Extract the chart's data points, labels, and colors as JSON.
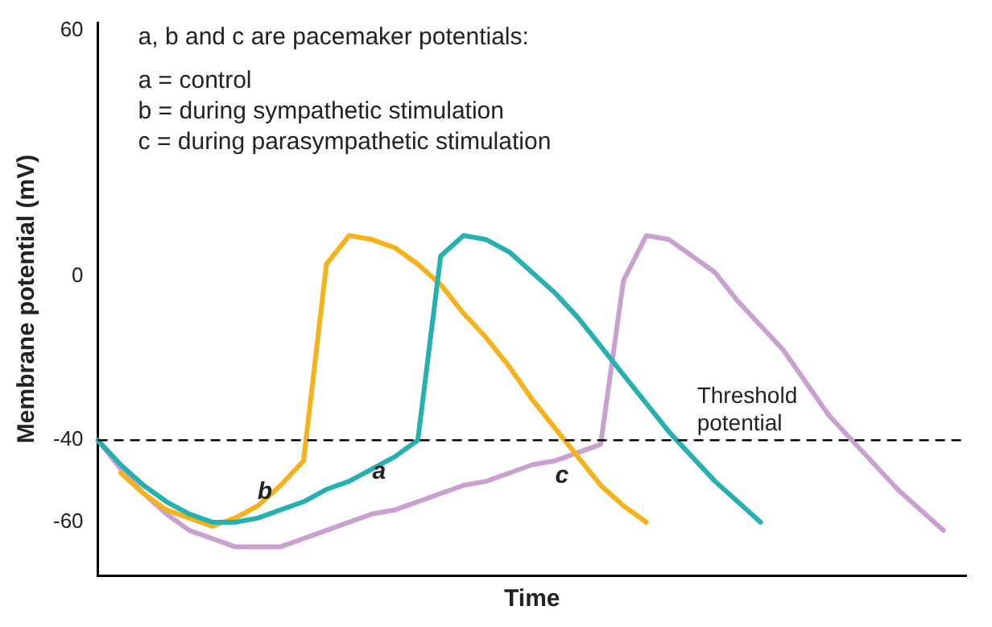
{
  "chart_data": {
    "type": "line",
    "xlabel": "Time",
    "ylabel": "Membrane potential (mV)",
    "categories": [
      null,
      null,
      null,
      null,
      null,
      null,
      null,
      null,
      null,
      null,
      null,
      null,
      null,
      null,
      null,
      null,
      null,
      null,
      null,
      null,
      null,
      null,
      null,
      null,
      null,
      null,
      null,
      null,
      null,
      null,
      null,
      null,
      null,
      null,
      null,
      null,
      null,
      null,
      null
    ],
    "series": [
      {
        "name": "b",
        "color": "#f5b21a",
        "values": [
          null,
          -48,
          -53,
          -57,
          -59,
          -61,
          -59,
          -56,
          -51,
          -45,
          3,
          10,
          9,
          7,
          3,
          -2,
          -9,
          -15,
          -22,
          -30,
          -37,
          -44,
          -51,
          -56,
          -60,
          null,
          null,
          null,
          null,
          null,
          null,
          null,
          null,
          null,
          null,
          null,
          null,
          null,
          null
        ]
      },
      {
        "name": "a",
        "color": "#26b0b0",
        "values": [
          -40,
          -46,
          -51,
          -55,
          -58,
          -60,
          -60,
          -59,
          -57,
          -55,
          -52,
          -50,
          -47,
          -44,
          -40,
          5,
          10,
          9,
          6,
          1,
          -4,
          -10,
          -17,
          -24,
          -31,
          -38,
          -44,
          -50,
          -55,
          -60,
          null,
          null,
          null,
          null,
          null,
          null,
          null,
          null,
          null
        ]
      },
      {
        "name": "c",
        "color": "#c9a0d0",
        "values": [
          -40,
          -47,
          -53,
          -58,
          -62,
          -64,
          -66,
          -66,
          -66,
          -64,
          -62,
          -60,
          -58,
          -57,
          -55,
          -53,
          -51,
          -50,
          -48,
          -46,
          -45,
          -43,
          -41,
          -1,
          10,
          9,
          5,
          1,
          -6,
          -12,
          -18,
          -26,
          -34,
          -40,
          -46,
          -52,
          -57,
          -62,
          null
        ]
      }
    ],
    "ylim": [
      -73,
      62
    ],
    "yticks": [
      60,
      0,
      -40,
      -60
    ],
    "grid": false,
    "legend": false,
    "marker": "none",
    "line_style": "solid",
    "tick_labels": "y",
    "ref_lines": [
      {
        "axis": "y",
        "value": -40,
        "label": "Threshold potential",
        "line_style": "dashed",
        "color": "#000000"
      }
    ],
    "annotations": [
      "a, b and c are pacemaker potentials:",
      "a = control",
      "b = during sympathetic stimulation",
      "c = during parasympathetic stimulation"
    ]
  }
}
